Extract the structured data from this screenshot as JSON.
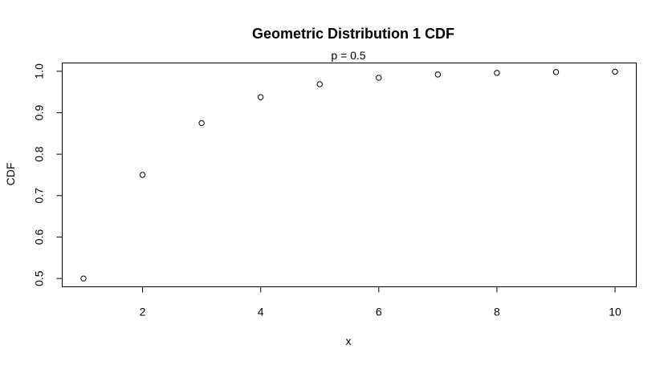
{
  "chart_data": {
    "type": "scatter",
    "title": "Geometric Distribution 1 CDF",
    "subtitle": "p = 0.5",
    "xlabel": "x",
    "ylabel": "CDF",
    "xlim": [
      0.64,
      10.36
    ],
    "ylim": [
      0.48,
      1.02
    ],
    "x_ticks": [
      2,
      4,
      6,
      8,
      10
    ],
    "y_ticks": [
      0.5,
      0.6,
      0.7,
      0.8,
      0.9,
      1.0
    ],
    "x_tick_labels": [
      "2",
      "4",
      "6",
      "8",
      "10"
    ],
    "y_tick_labels": [
      "0.5",
      "0.6",
      "0.7",
      "0.8",
      "0.9",
      "1.0"
    ],
    "grid": false,
    "legend": "none",
    "marker": "open-circle",
    "colors": {
      "points": "#000000",
      "axes": "#000000",
      "background": "#ffffff"
    },
    "series": [
      {
        "x": [
          1,
          2,
          3,
          4,
          5,
          6,
          7,
          8,
          9,
          10
        ],
        "y": [
          0.5,
          0.75,
          0.875,
          0.9375,
          0.96875,
          0.984375,
          0.9921875,
          0.99609375,
          0.998046875,
          0.9990234375
        ]
      }
    ]
  }
}
